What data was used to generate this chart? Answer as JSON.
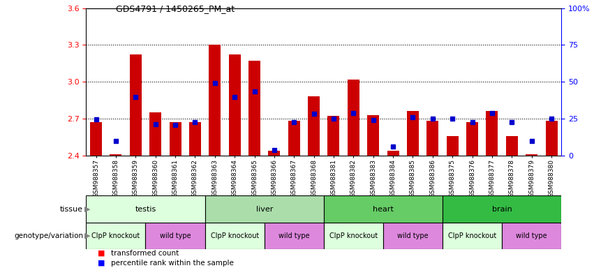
{
  "title": "GDS4791 / 1450265_PM_at",
  "samples": [
    "GSM988357",
    "GSM988358",
    "GSM988359",
    "GSM988360",
    "GSM988361",
    "GSM988362",
    "GSM988363",
    "GSM988364",
    "GSM988365",
    "GSM988366",
    "GSM988367",
    "GSM988368",
    "GSM988381",
    "GSM988382",
    "GSM988383",
    "GSM988384",
    "GSM988385",
    "GSM988386",
    "GSM988375",
    "GSM988376",
    "GSM988377",
    "GSM988378",
    "GSM988379",
    "GSM988380"
  ],
  "red_values": [
    2.67,
    2.41,
    3.22,
    2.75,
    2.67,
    2.67,
    3.3,
    3.22,
    3.17,
    2.44,
    2.68,
    2.88,
    2.72,
    3.02,
    2.73,
    2.44,
    2.76,
    2.68,
    2.56,
    2.67,
    2.76,
    2.56,
    2.41,
    2.68
  ],
  "blue_y_values": [
    2.695,
    2.52,
    2.875,
    2.655,
    2.648,
    2.672,
    2.99,
    2.875,
    2.92,
    2.445,
    2.672,
    2.74,
    2.7,
    2.745,
    2.69,
    2.475,
    2.71,
    2.7,
    2.7,
    2.672,
    2.745,
    2.672,
    2.52,
    2.7
  ],
  "ymin": 2.4,
  "ymax": 3.6,
  "yticks_left": [
    2.4,
    2.7,
    3.0,
    3.3,
    3.6
  ],
  "yticks_right": [
    0,
    25,
    50,
    75,
    100
  ],
  "tissue_groups": [
    {
      "label": "testis",
      "start": 0,
      "end": 5,
      "color": "#ddffdd"
    },
    {
      "label": "liver",
      "start": 6,
      "end": 11,
      "color": "#aaddaa"
    },
    {
      "label": "heart",
      "start": 12,
      "end": 17,
      "color": "#66cc66"
    },
    {
      "label": "brain",
      "start": 18,
      "end": 23,
      "color": "#33bb44"
    }
  ],
  "genotype_groups": [
    {
      "label": "ClpP knockout",
      "start": 0,
      "end": 2,
      "color": "#ddffdd"
    },
    {
      "label": "wild type",
      "start": 3,
      "end": 5,
      "color": "#dd88dd"
    },
    {
      "label": "ClpP knockout",
      "start": 6,
      "end": 8,
      "color": "#ddffdd"
    },
    {
      "label": "wild type",
      "start": 9,
      "end": 11,
      "color": "#dd88dd"
    },
    {
      "label": "ClpP knockout",
      "start": 12,
      "end": 14,
      "color": "#ddffdd"
    },
    {
      "label": "wild type",
      "start": 15,
      "end": 17,
      "color": "#dd88dd"
    },
    {
      "label": "ClpP knockout",
      "start": 18,
      "end": 20,
      "color": "#ddffdd"
    },
    {
      "label": "wild type",
      "start": 21,
      "end": 23,
      "color": "#dd88dd"
    }
  ],
  "bar_color": "#cc0000",
  "dot_color": "#0000cc",
  "bg_color": "#ffffff",
  "plot_bg": "#ffffff"
}
